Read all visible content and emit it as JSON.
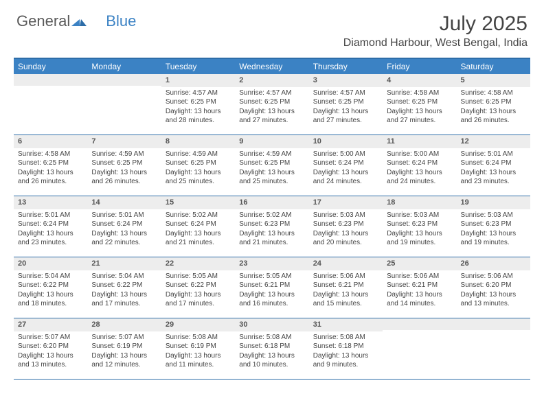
{
  "logo": {
    "text1": "General",
    "text2": "Blue"
  },
  "title": "July 2025",
  "location": "Diamond Harbour, West Bengal, India",
  "colors": {
    "header_bg": "#3b82c4",
    "header_text": "#ffffff",
    "border": "#2d6da8",
    "daynum_bg": "#ededed",
    "text": "#444444"
  },
  "fonts": {
    "title_size": 30,
    "location_size": 16,
    "header_size": 12,
    "daynum_size": 11,
    "body_size": 10
  },
  "day_headers": [
    "Sunday",
    "Monday",
    "Tuesday",
    "Wednesday",
    "Thursday",
    "Friday",
    "Saturday"
  ],
  "weeks": [
    [
      {
        "n": "",
        "sr": "",
        "ss": "",
        "dl": ""
      },
      {
        "n": "",
        "sr": "",
        "ss": "",
        "dl": ""
      },
      {
        "n": "1",
        "sr": "Sunrise: 4:57 AM",
        "ss": "Sunset: 6:25 PM",
        "dl": "Daylight: 13 hours and 28 minutes."
      },
      {
        "n": "2",
        "sr": "Sunrise: 4:57 AM",
        "ss": "Sunset: 6:25 PM",
        "dl": "Daylight: 13 hours and 27 minutes."
      },
      {
        "n": "3",
        "sr": "Sunrise: 4:57 AM",
        "ss": "Sunset: 6:25 PM",
        "dl": "Daylight: 13 hours and 27 minutes."
      },
      {
        "n": "4",
        "sr": "Sunrise: 4:58 AM",
        "ss": "Sunset: 6:25 PM",
        "dl": "Daylight: 13 hours and 27 minutes."
      },
      {
        "n": "5",
        "sr": "Sunrise: 4:58 AM",
        "ss": "Sunset: 6:25 PM",
        "dl": "Daylight: 13 hours and 26 minutes."
      }
    ],
    [
      {
        "n": "6",
        "sr": "Sunrise: 4:58 AM",
        "ss": "Sunset: 6:25 PM",
        "dl": "Daylight: 13 hours and 26 minutes."
      },
      {
        "n": "7",
        "sr": "Sunrise: 4:59 AM",
        "ss": "Sunset: 6:25 PM",
        "dl": "Daylight: 13 hours and 26 minutes."
      },
      {
        "n": "8",
        "sr": "Sunrise: 4:59 AM",
        "ss": "Sunset: 6:25 PM",
        "dl": "Daylight: 13 hours and 25 minutes."
      },
      {
        "n": "9",
        "sr": "Sunrise: 4:59 AM",
        "ss": "Sunset: 6:25 PM",
        "dl": "Daylight: 13 hours and 25 minutes."
      },
      {
        "n": "10",
        "sr": "Sunrise: 5:00 AM",
        "ss": "Sunset: 6:24 PM",
        "dl": "Daylight: 13 hours and 24 minutes."
      },
      {
        "n": "11",
        "sr": "Sunrise: 5:00 AM",
        "ss": "Sunset: 6:24 PM",
        "dl": "Daylight: 13 hours and 24 minutes."
      },
      {
        "n": "12",
        "sr": "Sunrise: 5:01 AM",
        "ss": "Sunset: 6:24 PM",
        "dl": "Daylight: 13 hours and 23 minutes."
      }
    ],
    [
      {
        "n": "13",
        "sr": "Sunrise: 5:01 AM",
        "ss": "Sunset: 6:24 PM",
        "dl": "Daylight: 13 hours and 23 minutes."
      },
      {
        "n": "14",
        "sr": "Sunrise: 5:01 AM",
        "ss": "Sunset: 6:24 PM",
        "dl": "Daylight: 13 hours and 22 minutes."
      },
      {
        "n": "15",
        "sr": "Sunrise: 5:02 AM",
        "ss": "Sunset: 6:24 PM",
        "dl": "Daylight: 13 hours and 21 minutes."
      },
      {
        "n": "16",
        "sr": "Sunrise: 5:02 AM",
        "ss": "Sunset: 6:23 PM",
        "dl": "Daylight: 13 hours and 21 minutes."
      },
      {
        "n": "17",
        "sr": "Sunrise: 5:03 AM",
        "ss": "Sunset: 6:23 PM",
        "dl": "Daylight: 13 hours and 20 minutes."
      },
      {
        "n": "18",
        "sr": "Sunrise: 5:03 AM",
        "ss": "Sunset: 6:23 PM",
        "dl": "Daylight: 13 hours and 19 minutes."
      },
      {
        "n": "19",
        "sr": "Sunrise: 5:03 AM",
        "ss": "Sunset: 6:23 PM",
        "dl": "Daylight: 13 hours and 19 minutes."
      }
    ],
    [
      {
        "n": "20",
        "sr": "Sunrise: 5:04 AM",
        "ss": "Sunset: 6:22 PM",
        "dl": "Daylight: 13 hours and 18 minutes."
      },
      {
        "n": "21",
        "sr": "Sunrise: 5:04 AM",
        "ss": "Sunset: 6:22 PM",
        "dl": "Daylight: 13 hours and 17 minutes."
      },
      {
        "n": "22",
        "sr": "Sunrise: 5:05 AM",
        "ss": "Sunset: 6:22 PM",
        "dl": "Daylight: 13 hours and 17 minutes."
      },
      {
        "n": "23",
        "sr": "Sunrise: 5:05 AM",
        "ss": "Sunset: 6:21 PM",
        "dl": "Daylight: 13 hours and 16 minutes."
      },
      {
        "n": "24",
        "sr": "Sunrise: 5:06 AM",
        "ss": "Sunset: 6:21 PM",
        "dl": "Daylight: 13 hours and 15 minutes."
      },
      {
        "n": "25",
        "sr": "Sunrise: 5:06 AM",
        "ss": "Sunset: 6:21 PM",
        "dl": "Daylight: 13 hours and 14 minutes."
      },
      {
        "n": "26",
        "sr": "Sunrise: 5:06 AM",
        "ss": "Sunset: 6:20 PM",
        "dl": "Daylight: 13 hours and 13 minutes."
      }
    ],
    [
      {
        "n": "27",
        "sr": "Sunrise: 5:07 AM",
        "ss": "Sunset: 6:20 PM",
        "dl": "Daylight: 13 hours and 13 minutes."
      },
      {
        "n": "28",
        "sr": "Sunrise: 5:07 AM",
        "ss": "Sunset: 6:19 PM",
        "dl": "Daylight: 13 hours and 12 minutes."
      },
      {
        "n": "29",
        "sr": "Sunrise: 5:08 AM",
        "ss": "Sunset: 6:19 PM",
        "dl": "Daylight: 13 hours and 11 minutes."
      },
      {
        "n": "30",
        "sr": "Sunrise: 5:08 AM",
        "ss": "Sunset: 6:18 PM",
        "dl": "Daylight: 13 hours and 10 minutes."
      },
      {
        "n": "31",
        "sr": "Sunrise: 5:08 AM",
        "ss": "Sunset: 6:18 PM",
        "dl": "Daylight: 13 hours and 9 minutes."
      },
      {
        "n": "",
        "sr": "",
        "ss": "",
        "dl": ""
      },
      {
        "n": "",
        "sr": "",
        "ss": "",
        "dl": ""
      }
    ]
  ]
}
